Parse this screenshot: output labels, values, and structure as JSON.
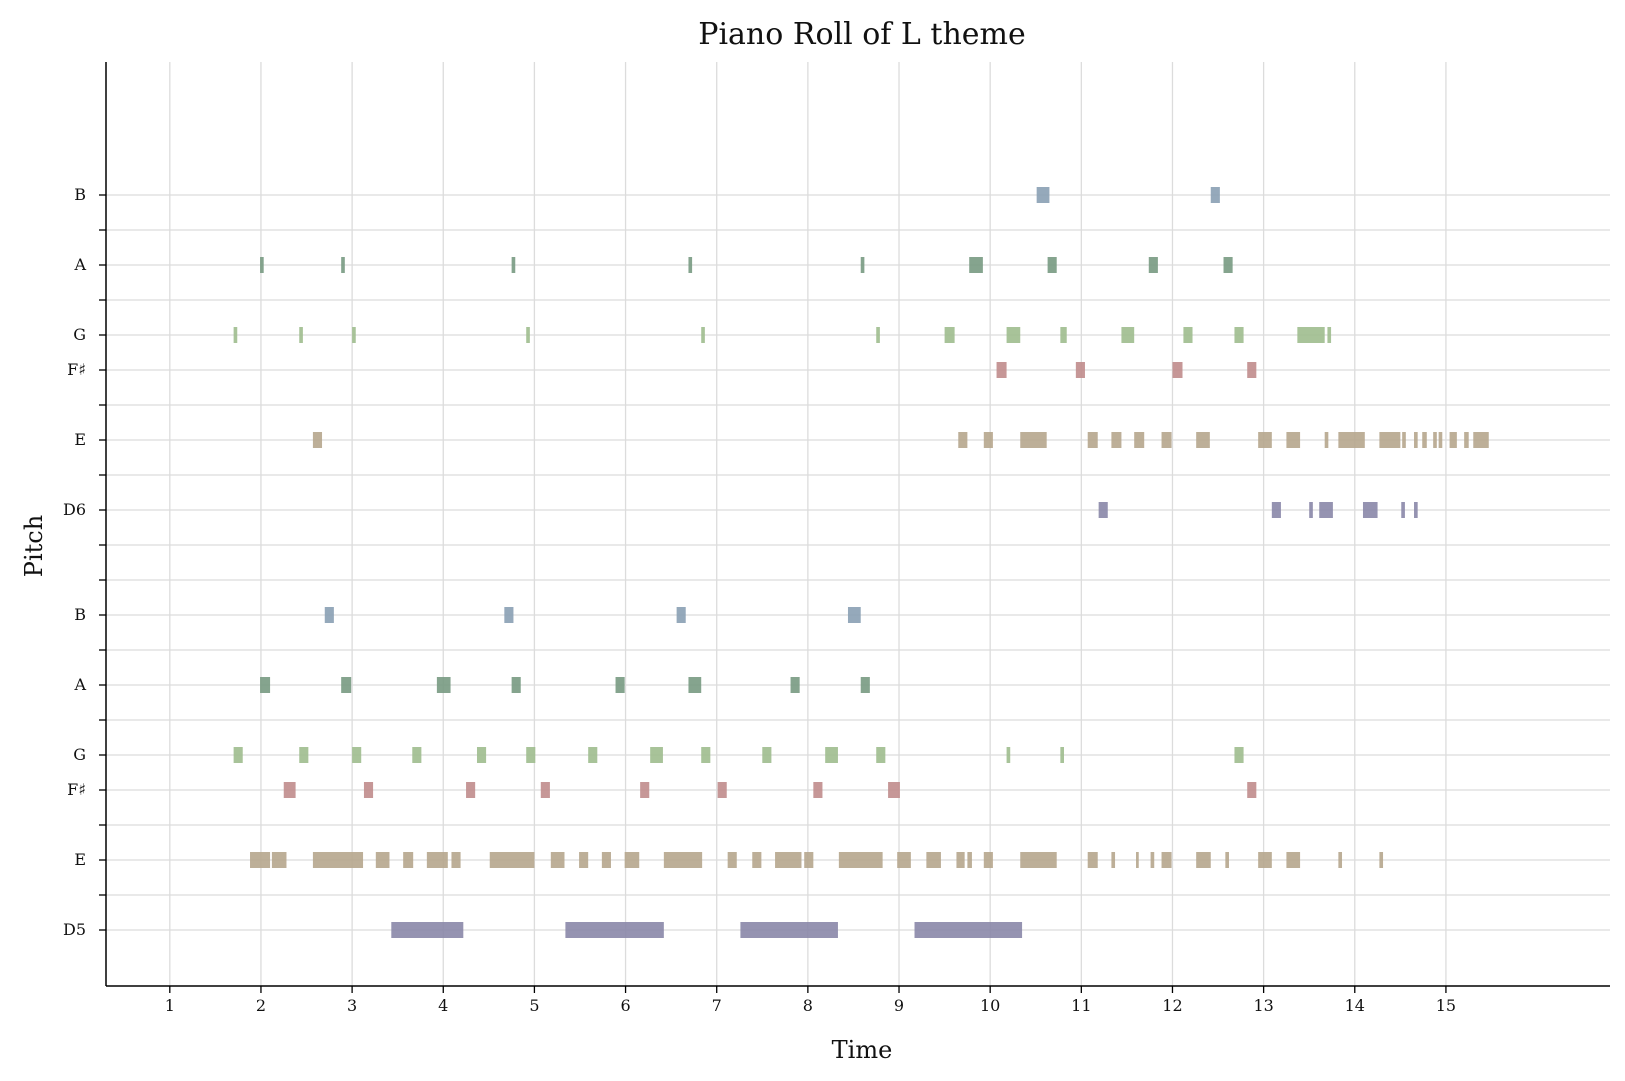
{
  "chart_data": {
    "type": "piano-roll",
    "title": "Piano Roll of L theme",
    "xlabel": "Time",
    "ylabel": "Pitch",
    "xlim": [
      0.3,
      16.8
    ],
    "ylim": [
      60.4,
      86.8
    ],
    "x_ticks": [
      1,
      2,
      3,
      4,
      5,
      6,
      7,
      8,
      9,
      10,
      11,
      12,
      13,
      14,
      15
    ],
    "y_ticks": [
      {
        "pitch": 62,
        "label": "D5"
      },
      {
        "pitch": 63,
        "label": ""
      },
      {
        "pitch": 64,
        "label": "E"
      },
      {
        "pitch": 65,
        "label": ""
      },
      {
        "pitch": 66,
        "label": "F♯"
      },
      {
        "pitch": 67,
        "label": "G"
      },
      {
        "pitch": 68,
        "label": ""
      },
      {
        "pitch": 69,
        "label": "A"
      },
      {
        "pitch": 70,
        "label": ""
      },
      {
        "pitch": 71,
        "label": "B"
      },
      {
        "pitch": 72,
        "label": ""
      },
      {
        "pitch": 73,
        "label": ""
      },
      {
        "pitch": 74,
        "label": "D6"
      },
      {
        "pitch": 75,
        "label": ""
      },
      {
        "pitch": 76,
        "label": "E"
      },
      {
        "pitch": 77,
        "label": ""
      },
      {
        "pitch": 78,
        "label": "F♯"
      },
      {
        "pitch": 79,
        "label": "G"
      },
      {
        "pitch": 80,
        "label": ""
      },
      {
        "pitch": 81,
        "label": "A"
      },
      {
        "pitch": 82,
        "label": ""
      },
      {
        "pitch": 83,
        "label": "B"
      }
    ],
    "grid": true,
    "pitch_colors": {
      "D": "#8a87a8",
      "E": "#b6a68d",
      "F♯": "#c08c8c",
      "G": "#9ebc8e",
      "A": "#789a82",
      "B": "#8aa0b4"
    },
    "series": [
      {
        "pitch": 62,
        "class": "D",
        "notes": [
          [
            3.43,
            4.22
          ],
          [
            5.34,
            6.42
          ],
          [
            7.26,
            8.33
          ],
          [
            9.17,
            10.35
          ]
        ]
      },
      {
        "pitch": 64,
        "class": "E",
        "notes": [
          [
            1.88,
            2.1
          ],
          [
            2.12,
            2.28
          ],
          [
            2.57,
            3.12
          ],
          [
            3.26,
            3.41
          ],
          [
            3.56,
            3.67
          ],
          [
            3.82,
            4.05
          ],
          [
            4.09,
            4.19
          ],
          [
            4.51,
            5.0
          ],
          [
            5.18,
            5.33
          ],
          [
            5.49,
            5.59
          ],
          [
            5.74,
            5.84
          ],
          [
            5.99,
            6.15
          ],
          [
            6.42,
            6.84
          ],
          [
            7.12,
            7.22
          ],
          [
            7.39,
            7.49
          ],
          [
            7.64,
            7.93
          ],
          [
            7.96,
            8.06
          ],
          [
            8.34,
            8.82
          ],
          [
            8.98,
            9.13
          ],
          [
            9.3,
            9.46
          ],
          [
            9.63,
            9.72
          ],
          [
            9.75,
            9.8
          ],
          [
            9.93,
            10.03
          ],
          [
            10.33,
            10.73
          ],
          [
            11.07,
            11.18
          ],
          [
            11.33,
            11.37
          ],
          [
            11.6,
            11.63
          ],
          [
            11.76,
            11.8
          ],
          [
            11.88,
            11.99
          ],
          [
            12.26,
            12.42
          ],
          [
            12.58,
            12.62
          ],
          [
            12.94,
            13.09
          ],
          [
            13.25,
            13.4
          ],
          [
            13.82,
            13.86
          ],
          [
            14.27,
            14.31
          ]
        ]
      },
      {
        "pitch": 66,
        "class": "F♯",
        "notes": [
          [
            2.25,
            2.38
          ],
          [
            3.13,
            3.23
          ],
          [
            4.25,
            4.35
          ],
          [
            5.07,
            5.17
          ],
          [
            6.16,
            6.26
          ],
          [
            7.01,
            7.11
          ],
          [
            8.06,
            8.16
          ],
          [
            8.88,
            9.01
          ],
          [
            12.82,
            12.92
          ]
        ]
      },
      {
        "pitch": 67,
        "class": "G",
        "notes": [
          [
            1.7,
            1.8
          ],
          [
            2.42,
            2.52
          ],
          [
            3.0,
            3.1
          ],
          [
            3.66,
            3.76
          ],
          [
            4.37,
            4.47
          ],
          [
            4.91,
            5.01
          ],
          [
            5.59,
            5.69
          ],
          [
            6.27,
            6.41
          ],
          [
            6.83,
            6.93
          ],
          [
            7.5,
            7.6
          ],
          [
            8.19,
            8.33
          ],
          [
            8.75,
            8.85
          ],
          [
            10.18,
            10.22
          ],
          [
            10.77,
            10.81
          ],
          [
            12.68,
            12.78
          ]
        ]
      },
      {
        "pitch": 69,
        "class": "A",
        "notes": [
          [
            1.99,
            2.1
          ],
          [
            2.88,
            2.99
          ],
          [
            3.93,
            4.08
          ],
          [
            4.75,
            4.85
          ],
          [
            5.89,
            5.99
          ],
          [
            6.69,
            6.83
          ],
          [
            7.81,
            7.91
          ],
          [
            8.58,
            8.68
          ]
        ]
      },
      {
        "pitch": 71,
        "class": "B",
        "notes": [
          [
            2.7,
            2.8
          ],
          [
            4.67,
            4.77
          ],
          [
            6.56,
            6.66
          ],
          [
            8.44,
            8.58
          ]
        ]
      },
      {
        "pitch": 74,
        "class": "D",
        "notes": [
          [
            11.19,
            11.29
          ],
          [
            13.09,
            13.19
          ],
          [
            13.5,
            13.54
          ],
          [
            13.61,
            13.76
          ],
          [
            14.09,
            14.25
          ],
          [
            14.51,
            14.55
          ],
          [
            14.65,
            14.69
          ]
        ]
      },
      {
        "pitch": 76,
        "class": "E",
        "notes": [
          [
            2.57,
            2.67
          ],
          [
            9.65,
            9.75
          ],
          [
            9.93,
            10.03
          ],
          [
            10.33,
            10.62
          ],
          [
            11.07,
            11.18
          ],
          [
            11.33,
            11.44
          ],
          [
            11.58,
            11.69
          ],
          [
            11.88,
            11.99
          ],
          [
            12.26,
            12.41
          ],
          [
            12.94,
            13.09
          ],
          [
            13.25,
            13.4
          ],
          [
            13.67,
            13.71
          ],
          [
            13.82,
            14.11
          ],
          [
            14.27,
            14.5
          ],
          [
            14.52,
            14.56
          ],
          [
            14.65,
            14.69
          ],
          [
            14.74,
            14.79
          ],
          [
            14.86,
            14.9
          ],
          [
            14.92,
            14.96
          ],
          [
            15.04,
            15.12
          ],
          [
            15.2,
            15.25
          ],
          [
            15.3,
            15.47
          ]
        ]
      },
      {
        "pitch": 78,
        "class": "F♯",
        "notes": [
          [
            10.07,
            10.18
          ],
          [
            10.94,
            11.04
          ],
          [
            12.0,
            12.11
          ],
          [
            12.82,
            12.92
          ]
        ]
      },
      {
        "pitch": 79,
        "class": "G",
        "notes": [
          [
            1.7,
            1.74
          ],
          [
            2.42,
            2.46
          ],
          [
            3.0,
            3.04
          ],
          [
            4.91,
            4.95
          ],
          [
            6.83,
            6.87
          ],
          [
            8.75,
            8.79
          ],
          [
            9.5,
            9.61
          ],
          [
            10.18,
            10.33
          ],
          [
            10.77,
            10.84
          ],
          [
            11.44,
            11.58
          ],
          [
            12.12,
            12.22
          ],
          [
            12.68,
            12.78
          ],
          [
            13.37,
            13.67
          ],
          [
            13.7,
            13.74
          ]
        ]
      },
      {
        "pitch": 81,
        "class": "A",
        "notes": [
          [
            1.99,
            2.03
          ],
          [
            2.88,
            2.92
          ],
          [
            4.75,
            4.79
          ],
          [
            6.69,
            6.73
          ],
          [
            8.58,
            8.62
          ],
          [
            9.77,
            9.92
          ],
          [
            10.63,
            10.73
          ],
          [
            11.74,
            11.84
          ],
          [
            12.56,
            12.66
          ]
        ]
      },
      {
        "pitch": 83,
        "class": "B",
        "notes": [
          [
            10.51,
            10.65
          ],
          [
            12.42,
            12.52
          ]
        ]
      }
    ]
  }
}
